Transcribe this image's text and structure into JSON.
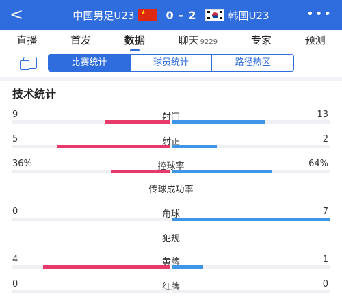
{
  "header": {
    "back_glyph": "<",
    "team_a": "中国男足U23",
    "team_b": "韩国U23",
    "score": "0 - 2",
    "more_glyph": "•••",
    "colors": {
      "bar_bg": "#2f6ddf"
    },
    "icons": [
      "back-arrow-icon",
      "china-flag-icon",
      "korea-flag-icon",
      "more-icon"
    ]
  },
  "tabs": [
    {
      "label": "直播"
    },
    {
      "label": "首发"
    },
    {
      "label": "数据",
      "active": true
    },
    {
      "label": "聊天",
      "count": "9229"
    },
    {
      "label": "专家"
    },
    {
      "label": "预测"
    }
  ],
  "subnav": {
    "icon": "copy-icon",
    "segments": [
      "比赛统计",
      "球员统计",
      "路径热区"
    ],
    "active": 0
  },
  "section": {
    "title": "技术统计"
  },
  "stats": [
    {
      "label": "射门",
      "left": "9",
      "right": "13",
      "left_frac": 0.41,
      "right_frac": 0.59
    },
    {
      "label": "射正",
      "left": "5",
      "right": "2",
      "left_frac": 0.71,
      "right_frac": 0.29
    },
    {
      "label": "控球率",
      "left": "36%",
      "right": "64%",
      "left_frac": 0.36,
      "right_frac": 0.64
    },
    {
      "label": "传球成功率",
      "left": "",
      "right": "",
      "left_frac": 0,
      "right_frac": 0,
      "no_bar": true
    },
    {
      "label": "角球",
      "left": "0",
      "right": "7",
      "left_frac": 0,
      "right_frac": 1.0
    },
    {
      "label": "犯规",
      "left": "",
      "right": "",
      "left_frac": 0,
      "right_frac": 0,
      "no_bar": true
    },
    {
      "label": "黄牌",
      "left": "4",
      "right": "1",
      "left_frac": 0.8,
      "right_frac": 0.2
    },
    {
      "label": "红牌",
      "left": "0",
      "right": "0",
      "left_frac": 0,
      "right_frac": 0
    }
  ],
  "colors": {
    "home": "#e83a6a",
    "away": "#3f96e8",
    "accent": "#2f6ddf"
  }
}
